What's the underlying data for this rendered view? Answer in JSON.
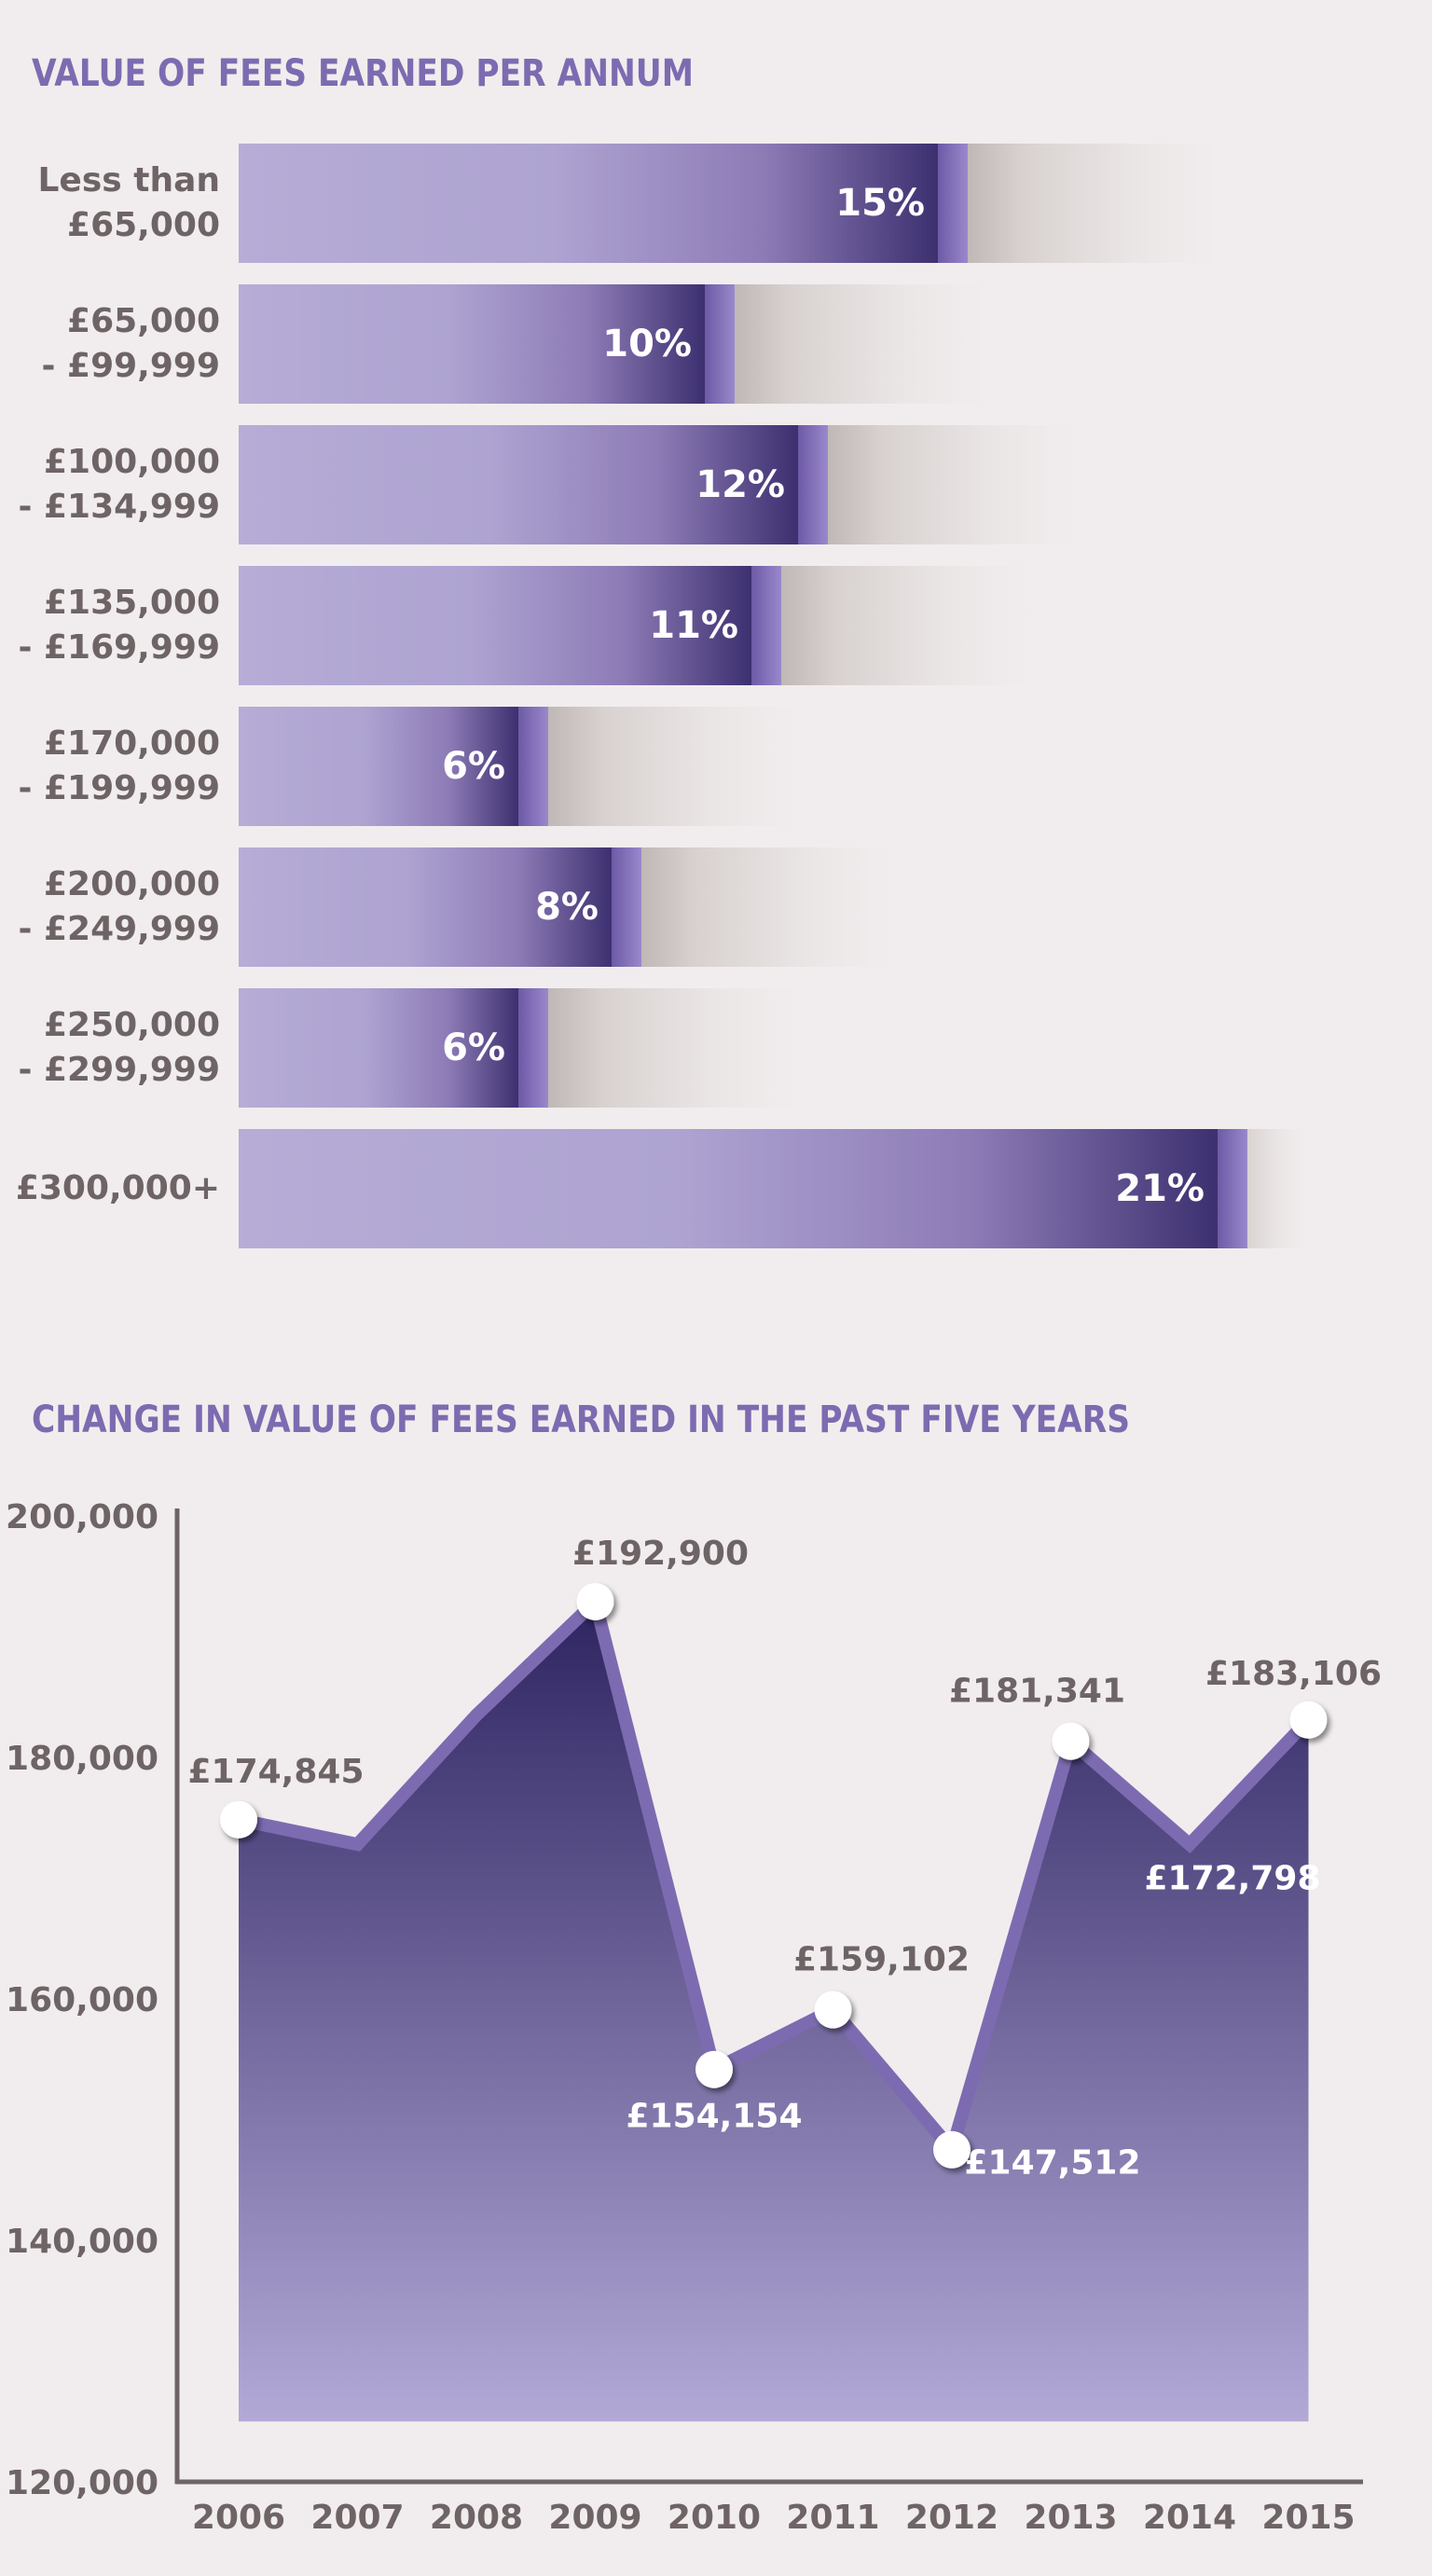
{
  "chart_data": [
    {
      "type": "bar",
      "orientation": "horizontal",
      "title": "VALUE OF FEES EARNED PER ANNUM",
      "categories": [
        [
          "Less than",
          "£65,000"
        ],
        [
          "£65,000",
          "- £99,999"
        ],
        [
          "£100,000",
          "- £134,999"
        ],
        [
          "£135,000",
          "- £169,999"
        ],
        [
          "£170,000",
          "- £199,999"
        ],
        [
          "£200,000",
          "- £249,999"
        ],
        [
          "£250,000",
          "- £299,999"
        ],
        [
          "£300,000+"
        ]
      ],
      "values": [
        15,
        10,
        12,
        11,
        6,
        8,
        6,
        21
      ],
      "value_labels": [
        "15%",
        "10%",
        "12%",
        "11%",
        "6%",
        "8%",
        "6%",
        "21%"
      ],
      "unit": "%",
      "colors": {
        "bar_light": "#b6acd6",
        "bar_dark": "#3d3070",
        "cap": "#7d6bb1",
        "label": "#6e6466"
      }
    },
    {
      "type": "area",
      "title": "CHANGE IN VALUE OF FEES EARNED IN THE PAST FIVE YEARS",
      "x": [
        "2006",
        "2007",
        "2008",
        "2009",
        "2010",
        "2011",
        "2012",
        "2013",
        "2014",
        "2015"
      ],
      "values": [
        174845,
        172800,
        183500,
        192900,
        154154,
        159102,
        147512,
        181341,
        172798,
        183106
      ],
      "point_labels": [
        {
          "index": 0,
          "text": "£174,845",
          "style": "dark",
          "marker": true
        },
        {
          "index": 3,
          "text": "£192,900",
          "style": "dark",
          "marker": true
        },
        {
          "index": 4,
          "text": "£154,154",
          "style": "light",
          "marker": true
        },
        {
          "index": 5,
          "text": "£159,102",
          "style": "dark",
          "marker": true
        },
        {
          "index": 6,
          "text": "£147,512",
          "style": "light",
          "marker": true
        },
        {
          "index": 7,
          "text": "£181,341",
          "style": "dark",
          "marker": true
        },
        {
          "index": 8,
          "text": "£172,798",
          "style": "light",
          "marker": false
        },
        {
          "index": 9,
          "text": "£183,106",
          "style": "dark",
          "marker": true
        }
      ],
      "ylim": [
        120000,
        200000
      ],
      "yticks": [
        120000,
        140000,
        160000,
        180000,
        200000
      ],
      "ytick_labels": [
        "120,000",
        "140,000",
        "160,000",
        "180,000",
        "200,000"
      ],
      "area_floor": 125000,
      "grid": false,
      "colors": {
        "line": "#7d6bb1",
        "area_top": "#2e2461",
        "area_bottom": "#b3a9d7",
        "axis": "#6e6466",
        "marker": "#ffffff"
      }
    }
  ]
}
